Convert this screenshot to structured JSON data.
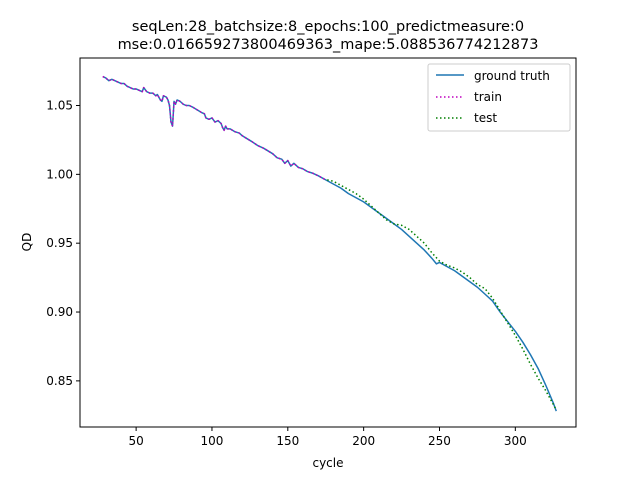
{
  "chart_data": {
    "type": "line",
    "title": "seqLen:28_batchsize:8_epochs:100_predictmeasure:0\nmse:0.016659273800469363_mape:5.088536774212873",
    "xlabel": "cycle",
    "ylabel": "QD",
    "xlim": [
      13,
      340
    ],
    "ylim": [
      0.8165,
      1.0845
    ],
    "xticks": [
      50,
      100,
      150,
      200,
      250,
      300
    ],
    "yticks": [
      0.85,
      0.9,
      0.95,
      1.0,
      1.05
    ],
    "ytick_labels": [
      "0.85",
      "0.90",
      "0.95",
      "1.00",
      "1.05"
    ],
    "grid": false,
    "legend_position": "top-right",
    "series": [
      {
        "name": "ground truth",
        "style": "solid",
        "color": "#1f77b4",
        "points": [
          [
            28,
            1.071
          ],
          [
            30,
            1.07
          ],
          [
            32,
            1.068
          ],
          [
            34,
            1.069
          ],
          [
            36,
            1.068
          ],
          [
            38,
            1.067
          ],
          [
            40,
            1.066
          ],
          [
            42,
            1.066
          ],
          [
            44,
            1.064
          ],
          [
            46,
            1.063
          ],
          [
            48,
            1.062
          ],
          [
            50,
            1.062
          ],
          [
            52,
            1.061
          ],
          [
            54,
            1.06
          ],
          [
            55,
            1.063
          ],
          [
            57,
            1.06
          ],
          [
            59,
            1.059
          ],
          [
            61,
            1.059
          ],
          [
            63,
            1.057
          ],
          [
            64,
            1.058
          ],
          [
            66,
            1.054
          ],
          [
            67,
            1.053
          ],
          [
            68,
            1.057
          ],
          [
            70,
            1.056
          ],
          [
            71,
            1.054
          ],
          [
            72,
            1.05
          ],
          [
            73,
            1.038
          ],
          [
            74,
            1.035
          ],
          [
            75,
            1.053
          ],
          [
            76,
            1.051
          ],
          [
            77,
            1.054
          ],
          [
            79,
            1.053
          ],
          [
            81,
            1.051
          ],
          [
            83,
            1.05
          ],
          [
            85,
            1.05
          ],
          [
            87,
            1.049
          ],
          [
            90,
            1.047
          ],
          [
            93,
            1.045
          ],
          [
            95,
            1.044
          ],
          [
            96,
            1.041
          ],
          [
            98,
            1.04
          ],
          [
            100,
            1.041
          ],
          [
            102,
            1.038
          ],
          [
            104,
            1.039
          ],
          [
            106,
            1.037
          ],
          [
            107,
            1.034
          ],
          [
            108,
            1.032
          ],
          [
            109,
            1.035
          ],
          [
            110,
            1.033
          ],
          [
            112,
            1.033
          ],
          [
            115,
            1.031
          ],
          [
            118,
            1.03
          ],
          [
            120,
            1.028
          ],
          [
            123,
            1.026
          ],
          [
            126,
            1.024
          ],
          [
            130,
            1.021
          ],
          [
            134,
            1.019
          ],
          [
            137,
            1.017
          ],
          [
            140,
            1.015
          ],
          [
            143,
            1.012
          ],
          [
            146,
            1.011
          ],
          [
            148,
            1.008
          ],
          [
            150,
            1.01
          ],
          [
            152,
            1.006
          ],
          [
            154,
            1.008
          ],
          [
            157,
            1.005
          ],
          [
            160,
            1.004
          ],
          [
            163,
            1.002
          ],
          [
            166,
            1.001
          ],
          [
            170,
            0.999
          ],
          [
            175,
            0.996
          ],
          [
            180,
            0.993
          ],
          [
            185,
            0.99
          ],
          [
            190,
            0.986
          ],
          [
            195,
            0.983
          ],
          [
            200,
            0.98
          ],
          [
            205,
            0.976
          ],
          [
            210,
            0.972
          ],
          [
            215,
            0.968
          ],
          [
            220,
            0.964
          ],
          [
            225,
            0.96
          ],
          [
            230,
            0.955
          ],
          [
            235,
            0.95
          ],
          [
            240,
            0.945
          ],
          [
            245,
            0.939
          ],
          [
            248,
            0.935
          ],
          [
            250,
            0.936
          ],
          [
            255,
            0.933
          ],
          [
            260,
            0.93
          ],
          [
            265,
            0.926
          ],
          [
            270,
            0.922
          ],
          [
            275,
            0.918
          ],
          [
            280,
            0.913
          ],
          [
            285,
            0.908
          ],
          [
            290,
            0.9
          ],
          [
            295,
            0.893
          ],
          [
            300,
            0.886
          ],
          [
            305,
            0.878
          ],
          [
            310,
            0.869
          ],
          [
            315,
            0.859
          ],
          [
            320,
            0.847
          ],
          [
            325,
            0.834
          ],
          [
            327,
            0.828
          ]
        ]
      },
      {
        "name": "train",
        "style": "dotted",
        "color": "#bf00bf",
        "points": [
          [
            28,
            1.071
          ],
          [
            30,
            1.07
          ],
          [
            32,
            1.068
          ],
          [
            34,
            1.069
          ],
          [
            36,
            1.068
          ],
          [
            38,
            1.067
          ],
          [
            40,
            1.066
          ],
          [
            42,
            1.066
          ],
          [
            44,
            1.064
          ],
          [
            46,
            1.063
          ],
          [
            48,
            1.062
          ],
          [
            50,
            1.062
          ],
          [
            52,
            1.061
          ],
          [
            54,
            1.06
          ],
          [
            55,
            1.063
          ],
          [
            57,
            1.06
          ],
          [
            59,
            1.059
          ],
          [
            61,
            1.059
          ],
          [
            63,
            1.057
          ],
          [
            64,
            1.058
          ],
          [
            66,
            1.054
          ],
          [
            67,
            1.053
          ],
          [
            68,
            1.057
          ],
          [
            70,
            1.056
          ],
          [
            71,
            1.054
          ],
          [
            72,
            1.05
          ],
          [
            73,
            1.038
          ],
          [
            74,
            1.035
          ],
          [
            75,
            1.053
          ],
          [
            76,
            1.051
          ],
          [
            77,
            1.054
          ],
          [
            79,
            1.053
          ],
          [
            81,
            1.051
          ],
          [
            83,
            1.05
          ],
          [
            85,
            1.05
          ],
          [
            87,
            1.049
          ],
          [
            90,
            1.047
          ],
          [
            93,
            1.045
          ],
          [
            95,
            1.044
          ],
          [
            96,
            1.041
          ],
          [
            98,
            1.04
          ],
          [
            100,
            1.041
          ],
          [
            102,
            1.038
          ],
          [
            104,
            1.039
          ],
          [
            106,
            1.037
          ],
          [
            107,
            1.034
          ],
          [
            108,
            1.032
          ],
          [
            109,
            1.035
          ],
          [
            110,
            1.033
          ],
          [
            112,
            1.033
          ],
          [
            115,
            1.031
          ],
          [
            118,
            1.03
          ],
          [
            120,
            1.028
          ],
          [
            123,
            1.026
          ],
          [
            126,
            1.024
          ],
          [
            130,
            1.021
          ],
          [
            134,
            1.019
          ],
          [
            137,
            1.017
          ],
          [
            140,
            1.015
          ],
          [
            143,
            1.012
          ],
          [
            146,
            1.011
          ],
          [
            148,
            1.008
          ],
          [
            150,
            1.01
          ],
          [
            152,
            1.006
          ],
          [
            154,
            1.008
          ],
          [
            157,
            1.005
          ],
          [
            160,
            1.004
          ],
          [
            163,
            1.002
          ],
          [
            166,
            1.001
          ],
          [
            170,
            0.999
          ],
          [
            175,
            0.996
          ]
        ]
      },
      {
        "name": "test",
        "style": "dotted",
        "color": "#007f00",
        "points": [
          [
            176,
            0.996
          ],
          [
            180,
            0.995
          ],
          [
            185,
            0.992
          ],
          [
            190,
            0.989
          ],
          [
            195,
            0.986
          ],
          [
            200,
            0.982
          ],
          [
            205,
            0.977
          ],
          [
            210,
            0.972
          ],
          [
            215,
            0.967
          ],
          [
            220,
            0.964
          ],
          [
            225,
            0.963
          ],
          [
            230,
            0.96
          ],
          [
            235,
            0.955
          ],
          [
            240,
            0.95
          ],
          [
            245,
            0.943
          ],
          [
            250,
            0.937
          ],
          [
            255,
            0.934
          ],
          [
            260,
            0.932
          ],
          [
            265,
            0.929
          ],
          [
            270,
            0.925
          ],
          [
            275,
            0.92
          ],
          [
            280,
            0.917
          ],
          [
            285,
            0.91
          ],
          [
            290,
            0.901
          ],
          [
            295,
            0.892
          ],
          [
            300,
            0.883
          ],
          [
            305,
            0.873
          ],
          [
            310,
            0.862
          ],
          [
            315,
            0.852
          ],
          [
            320,
            0.843
          ],
          [
            325,
            0.833
          ],
          [
            327,
            0.829
          ]
        ]
      }
    ]
  }
}
